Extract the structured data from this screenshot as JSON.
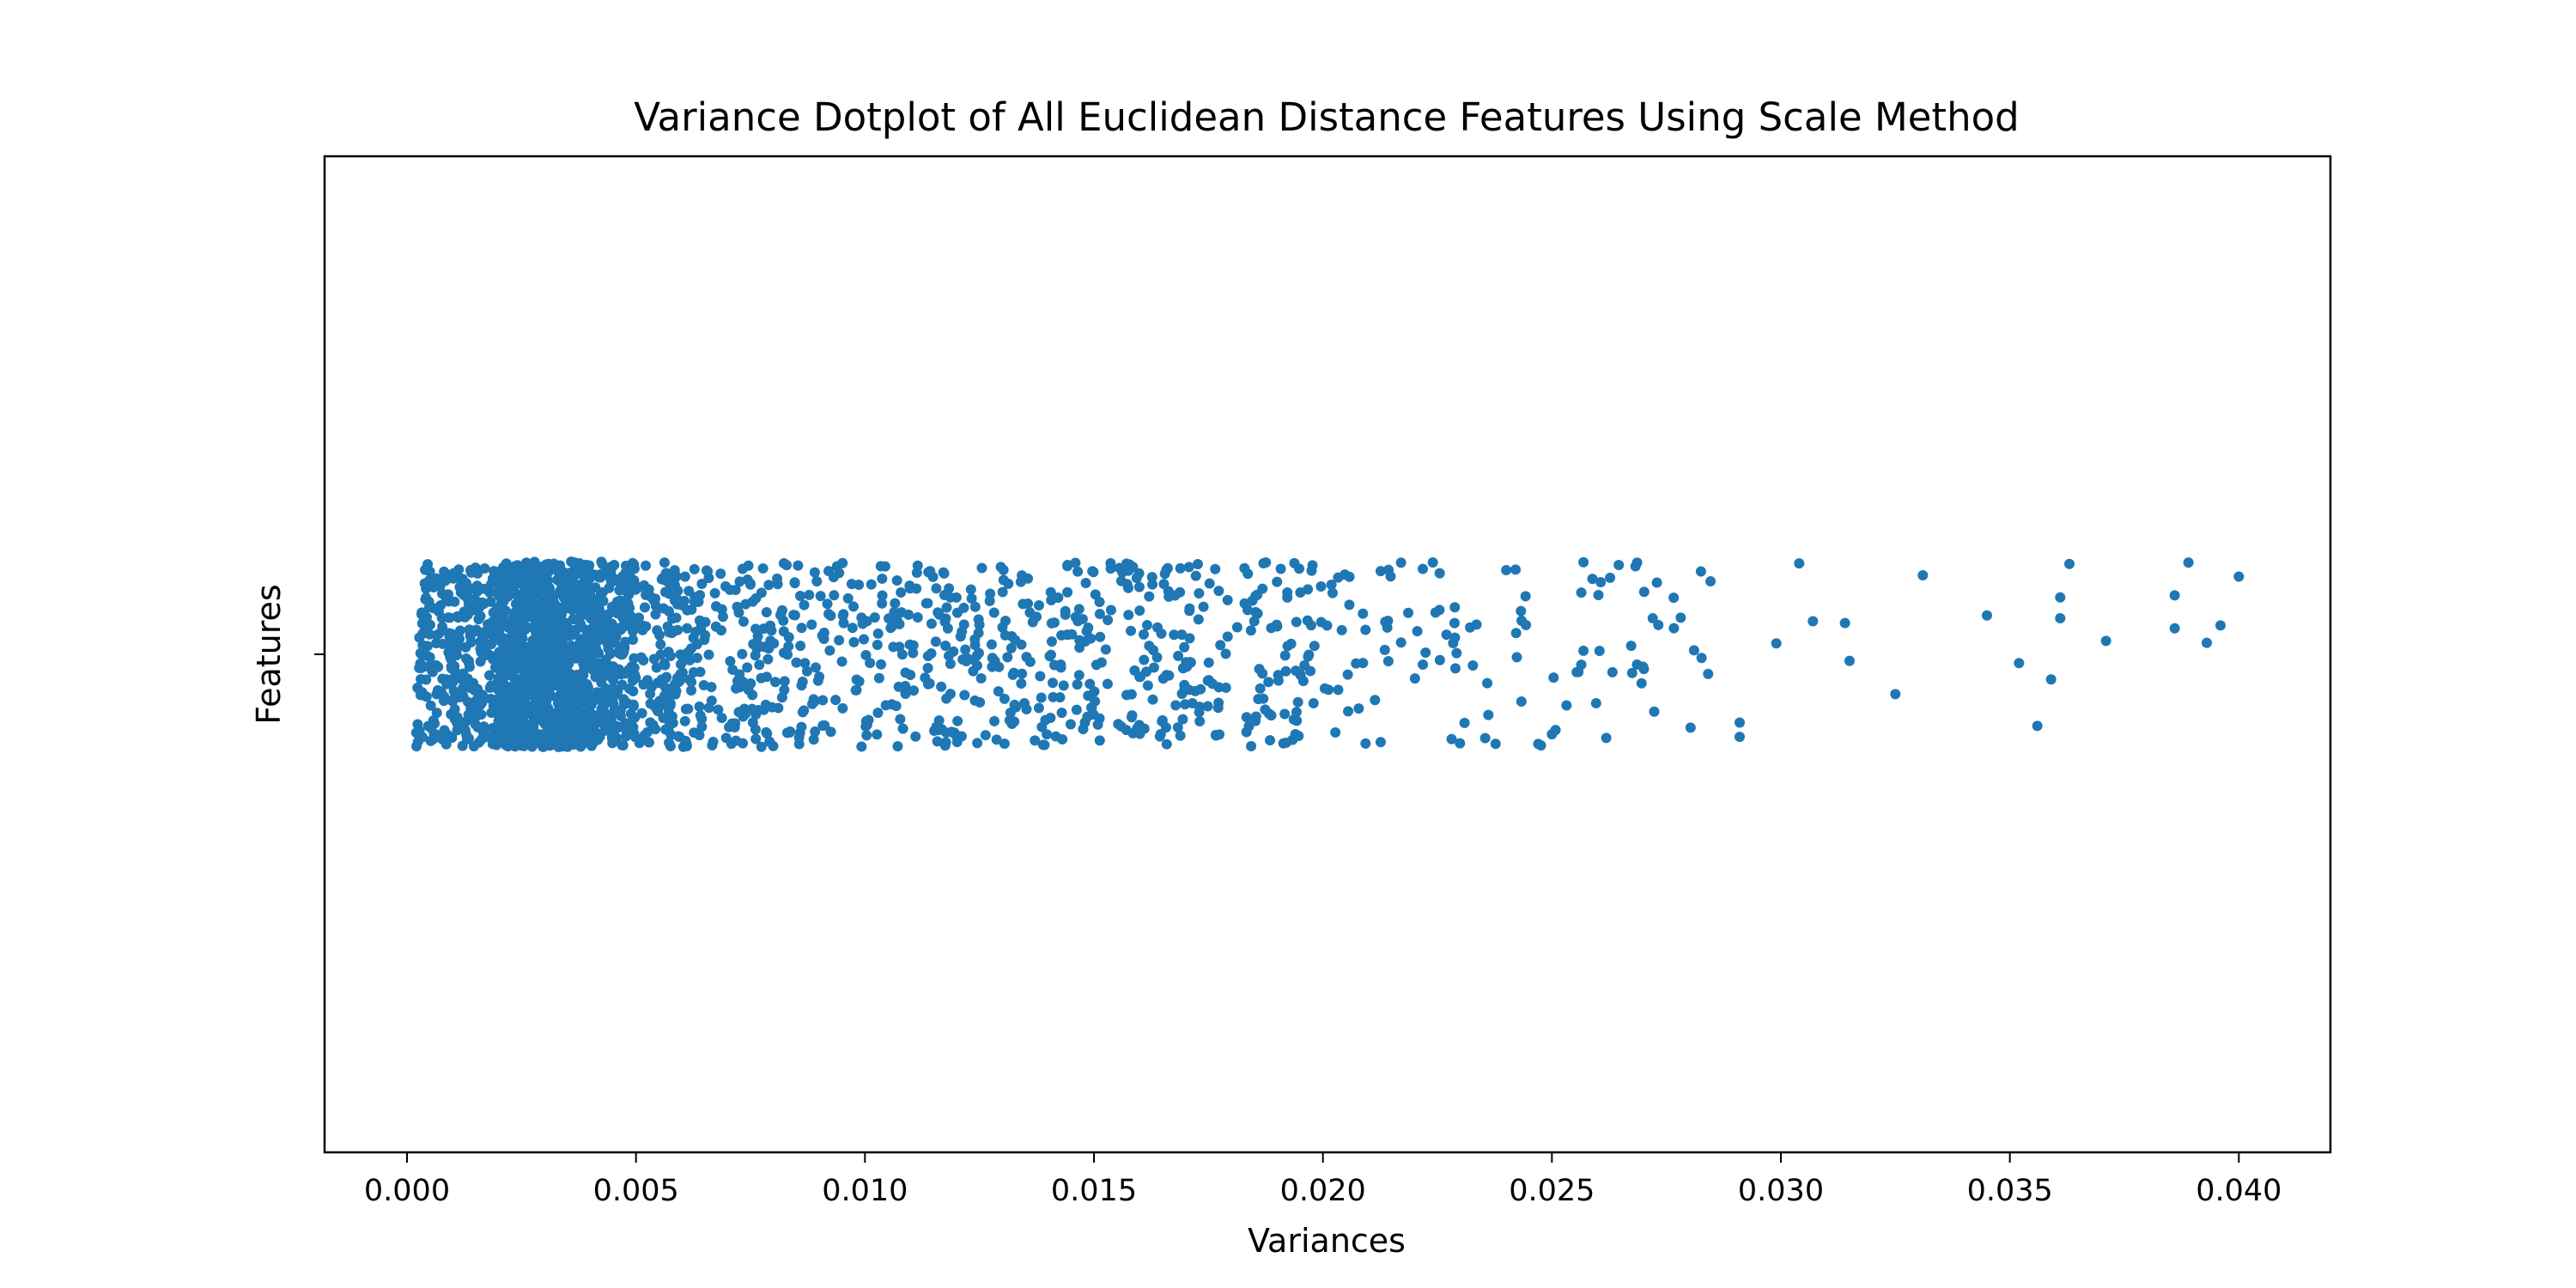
{
  "chart_data": {
    "type": "scatter",
    "variant": "strip-plot",
    "title": "Variance Dotplot of All Euclidean Distance Features Using Scale Method",
    "xlabel": "Variances",
    "ylabel": "Features",
    "xlim": [
      -0.0018,
      0.042
    ],
    "x_ticks": [
      0.0,
      0.005,
      0.01,
      0.015,
      0.02,
      0.025,
      0.03,
      0.035,
      0.04
    ],
    "x_tick_labels": [
      "0.000",
      "0.005",
      "0.010",
      "0.015",
      "0.020",
      "0.025",
      "0.030",
      "0.035",
      "0.040"
    ],
    "y_categories": [
      ""
    ],
    "grid": false,
    "legend": "none",
    "point_color": "#1f77b4",
    "point_count_approx": 2500,
    "distribution_bands": [
      {
        "range": [
          0.0002,
          0.001
        ],
        "count": 110
      },
      {
        "range": [
          0.001,
          0.002
        ],
        "count": 180
      },
      {
        "range": [
          0.002,
          0.003
        ],
        "count": 420
      },
      {
        "range": [
          0.003,
          0.004
        ],
        "count": 430
      },
      {
        "range": [
          0.004,
          0.005
        ],
        "count": 240
      },
      {
        "range": [
          0.005,
          0.0065
        ],
        "count": 160
      },
      {
        "range": [
          0.0065,
          0.0085
        ],
        "count": 120
      },
      {
        "range": [
          0.0085,
          0.012
        ],
        "count": 170
      },
      {
        "range": [
          0.012,
          0.016
        ],
        "count": 190
      },
      {
        "range": [
          0.016,
          0.0198
        ],
        "count": 160
      },
      {
        "range": [
          0.0198,
          0.023
        ],
        "count": 55
      },
      {
        "range": [
          0.023,
          0.0285
        ],
        "count": 60
      }
    ],
    "sparse_points": [
      0.0291,
      0.0291,
      0.0299,
      0.0304,
      0.0307,
      0.0314,
      0.0315,
      0.0325,
      0.0331,
      0.0345,
      0.0352,
      0.0356,
      0.0359,
      0.0361,
      0.0361,
      0.0363,
      0.0371,
      0.0386,
      0.0386,
      0.0389,
      0.0393,
      0.0396,
      0.04
    ]
  }
}
